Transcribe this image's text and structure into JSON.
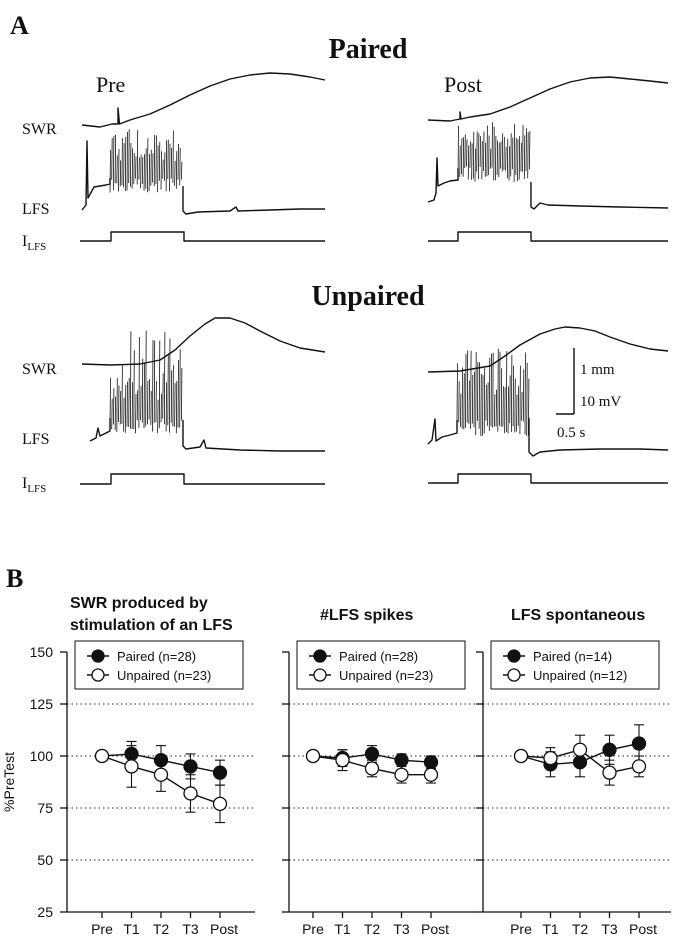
{
  "panel_a": {
    "label": "A",
    "groups": [
      {
        "title": "Paired",
        "col_labels": [
          "Pre",
          "Post"
        ]
      },
      {
        "title": "Unpaired",
        "col_labels": [
          "",
          ""
        ]
      }
    ],
    "row_labels": {
      "swr": "SWR",
      "lfs": "LFS",
      "ilfs_main": "I",
      "ilfs_sub": "LFS"
    },
    "scalebar": {
      "vertical_1": "1 mm",
      "vertical_2": "10 mV",
      "horizontal": "0.5 s"
    }
  },
  "panel_b": {
    "label": "B"
  },
  "chart_data": [
    {
      "type": "line",
      "title": "SWR produced by stimulation of an LFS",
      "title_lines": [
        "SWR produced by",
        "stimulation of an LFS"
      ],
      "ylabel": "%PreTest",
      "ylim": [
        25,
        150
      ],
      "yticks": [
        25,
        50,
        75,
        100,
        125,
        150
      ],
      "categories": [
        "Pre",
        "T1",
        "T2",
        "T3",
        "Post"
      ],
      "grid": true,
      "legend_position": "top",
      "series": [
        {
          "name": "Paired (n=28)",
          "marker": "filled-circle",
          "values": [
            100,
            101,
            98,
            95,
            92
          ],
          "errors": [
            0,
            6,
            7,
            6,
            6
          ]
        },
        {
          "name": "Unpaired (n=23)",
          "marker": "open-circle",
          "values": [
            100,
            95,
            91,
            82,
            77
          ],
          "errors": [
            0,
            10,
            8,
            9,
            9
          ]
        }
      ]
    },
    {
      "type": "line",
      "title": "#LFS spikes",
      "title_lines": [
        "#LFS spikes"
      ],
      "ylim": [
        25,
        150
      ],
      "yticks": [
        25,
        50,
        75,
        100,
        125,
        150
      ],
      "categories": [
        "Pre",
        "T1",
        "T2",
        "T3",
        "Post"
      ],
      "grid": true,
      "legend_position": "top",
      "series": [
        {
          "name": "Paired (n=28)",
          "marker": "filled-circle",
          "values": [
            100,
            99,
            101,
            98,
            97
          ],
          "errors": [
            0,
            4,
            4,
            3,
            3
          ]
        },
        {
          "name": "Unpaired (n=23)",
          "marker": "open-circle",
          "values": [
            100,
            98,
            94,
            91,
            91
          ],
          "errors": [
            0,
            5,
            4,
            4,
            4
          ]
        }
      ]
    },
    {
      "type": "line",
      "title": "LFS spontaneous",
      "title_lines": [
        "LFS spontaneous"
      ],
      "ylim": [
        25,
        150
      ],
      "yticks": [
        25,
        50,
        75,
        100,
        125,
        150
      ],
      "categories": [
        "Pre",
        "T1",
        "T2",
        "T3",
        "Post"
      ],
      "grid": true,
      "legend_position": "top",
      "series": [
        {
          "name": "Paired (n=14)",
          "marker": "filled-circle",
          "values": [
            100,
            96,
            97,
            103,
            106
          ],
          "errors": [
            0,
            6,
            7,
            7,
            9
          ]
        },
        {
          "name": "Unpaired (n=12)",
          "marker": "open-circle",
          "values": [
            100,
            99,
            103,
            92,
            95
          ],
          "errors": [
            0,
            5,
            7,
            6,
            5
          ]
        }
      ]
    }
  ]
}
